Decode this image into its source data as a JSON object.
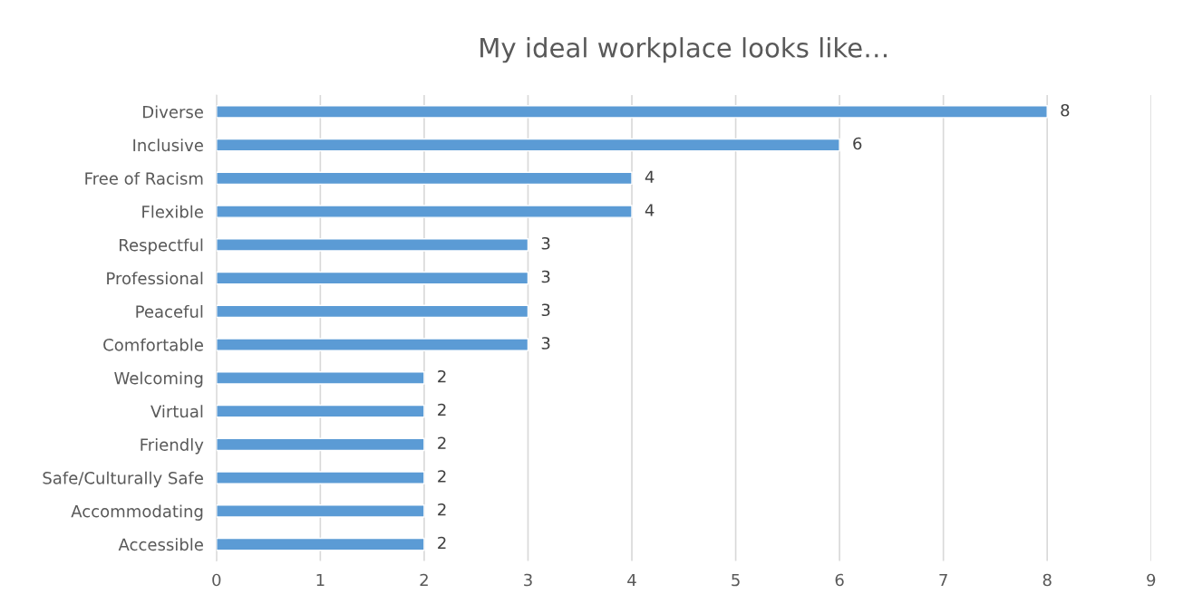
{
  "chart_data": {
    "type": "bar",
    "orientation": "horizontal",
    "title": "My ideal workplace looks like…",
    "categories": [
      "Diverse",
      "Inclusive",
      "Free of Racism",
      "Flexible",
      "Respectful",
      "Professional",
      "Peaceful",
      "Comfortable",
      "Welcoming",
      "Virtual",
      "Friendly",
      "Safe/Culturally Safe",
      "Accommodating",
      "Accessible"
    ],
    "values": [
      8,
      6,
      4,
      4,
      3,
      3,
      3,
      3,
      2,
      2,
      2,
      2,
      2,
      2
    ],
    "color": "#5b9bd5",
    "xlim": [
      0,
      9
    ],
    "xticks": [
      0,
      1,
      2,
      3,
      4,
      5,
      6,
      7,
      8,
      9
    ],
    "grid": "x",
    "data_labels": true
  }
}
